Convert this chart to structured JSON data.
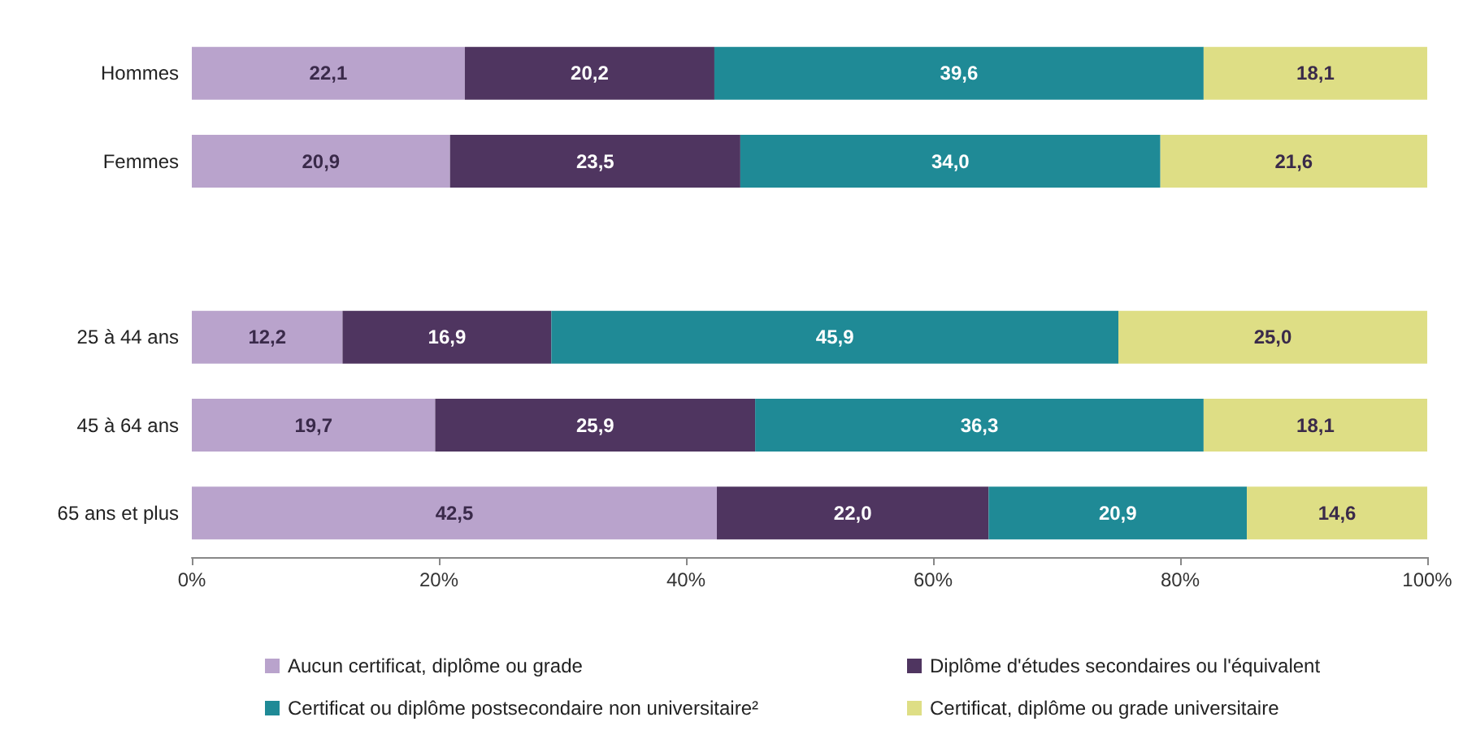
{
  "chart_data": {
    "type": "bar",
    "orientation": "horizontal",
    "stacked": true,
    "categories": [
      "Hommes",
      "Femmes",
      null,
      "25 à 44 ans",
      "45 à 64 ans",
      "65 ans et plus"
    ],
    "series": [
      {
        "name": "Aucun certificat, diplôme ou grade",
        "color": "#b9a3cc",
        "values": [
          22.1,
          20.9,
          null,
          12.2,
          19.7,
          42.5
        ],
        "value_labels": [
          "22,1",
          "20,9",
          null,
          "12,2",
          "19,7",
          "42,5"
        ]
      },
      {
        "name": "Diplôme d'études secondaires ou l'équivalent",
        "color": "#4f3560",
        "values": [
          20.2,
          23.5,
          null,
          16.9,
          25.9,
          22.0
        ],
        "value_labels": [
          "20,2",
          "23,5",
          null,
          "16,9",
          "25,9",
          "22,0"
        ]
      },
      {
        "name": "Certificat ou diplôme postsecondaire non universitaire²",
        "color": "#1f8a96",
        "values": [
          39.6,
          34.0,
          null,
          45.9,
          36.3,
          20.9
        ],
        "value_labels": [
          "39,6",
          "34,0",
          null,
          "45,9",
          "36,3",
          "20,9"
        ]
      },
      {
        "name": "Certificat, diplôme ou grade universitaire",
        "color": "#dede85",
        "values": [
          18.1,
          21.6,
          null,
          25.0,
          18.1,
          14.6
        ],
        "value_labels": [
          "18,1",
          "21,6",
          null,
          "25,0",
          "18,1",
          "14,6"
        ]
      }
    ],
    "xlim": [
      0,
      100
    ],
    "xticks": [
      {
        "value": 0,
        "label": "0%"
      },
      {
        "value": 20,
        "label": "20%"
      },
      {
        "value": 40,
        "label": "40%"
      },
      {
        "value": 60,
        "label": "60%"
      },
      {
        "value": 80,
        "label": "80%"
      },
      {
        "value": 100,
        "label": "100%"
      }
    ],
    "grid": false,
    "legend": "bottom"
  }
}
